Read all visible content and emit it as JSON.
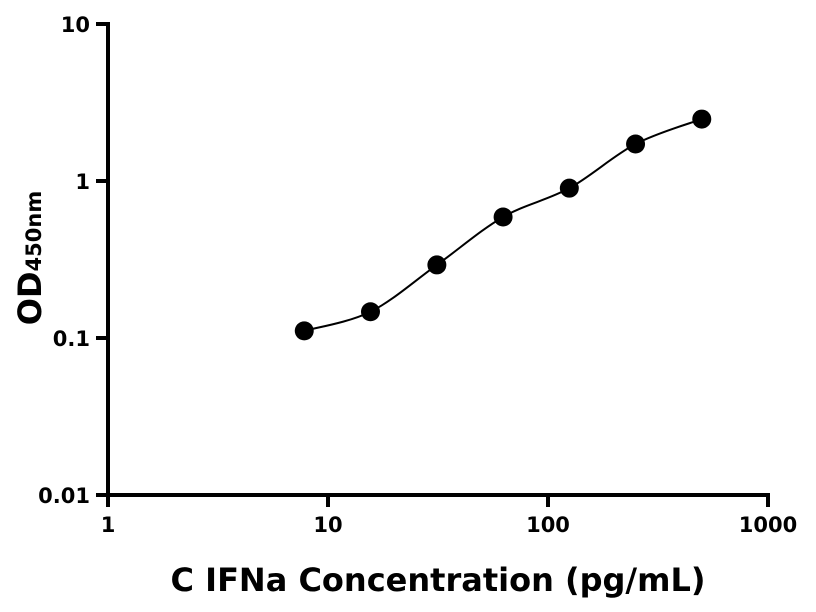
{
  "chart_data": {
    "type": "scatter",
    "title": "",
    "xlabel": "C IFNa Concentration (pg/mL)",
    "ylabel": "OD",
    "ylabel_subscript": "450nm",
    "x_scale": "log",
    "y_scale": "log",
    "xlim": [
      1,
      1000
    ],
    "ylim": [
      0.01,
      10
    ],
    "x_ticks": [
      "1",
      "10",
      "100",
      "1000"
    ],
    "y_ticks": [
      "0.01",
      "0.1",
      "1",
      "10"
    ],
    "grid": false,
    "fit_curve": true,
    "colors": {
      "points": "#000000",
      "curve": "#000000"
    },
    "series": [
      {
        "x": [
          7.8,
          15.6,
          31.25,
          62.5,
          125,
          250,
          500
        ],
        "y": [
          0.111,
          0.147,
          0.292,
          0.59,
          0.9,
          1.72,
          2.48
        ]
      }
    ]
  }
}
